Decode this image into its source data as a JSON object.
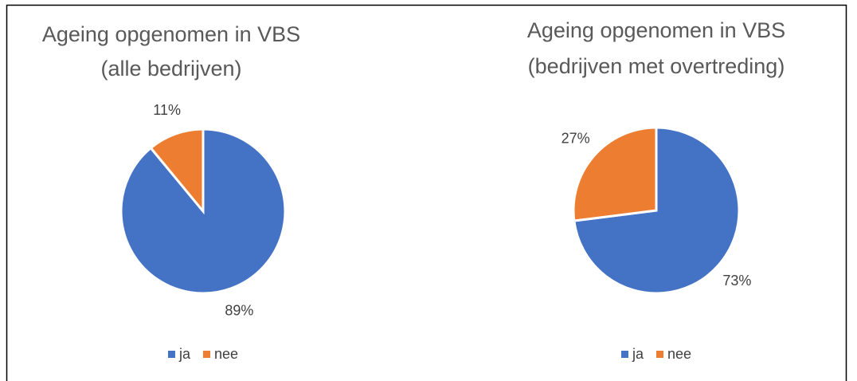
{
  "chart_data": [
    {
      "type": "pie",
      "title": [
        "Ageing opgenomen in VBS",
        "(alle bedrijven)"
      ],
      "categories": [
        "ja",
        "nee"
      ],
      "values": [
        89,
        11
      ],
      "value_labels": [
        "89%",
        "11%"
      ],
      "colors": [
        "#4472c4",
        "#ed7d31"
      ],
      "legend": "bottom"
    },
    {
      "type": "pie",
      "title": [
        "Ageing opgenomen in VBS",
        "(bedrijven met overtreding)"
      ],
      "categories": [
        "ja",
        "nee"
      ],
      "values": [
        73,
        27
      ],
      "value_labels": [
        "73%",
        "27%"
      ],
      "colors": [
        "#4472c4",
        "#ed7d31"
      ],
      "legend": "bottom"
    }
  ]
}
